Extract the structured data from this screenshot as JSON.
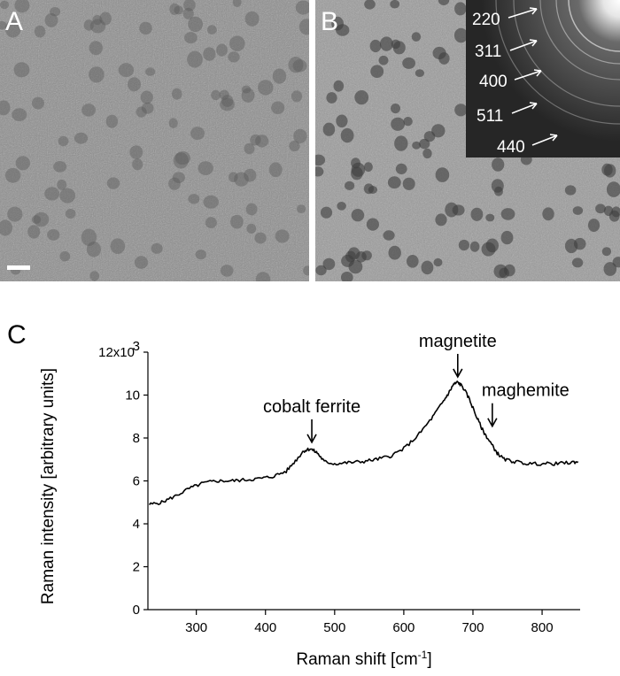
{
  "panels": {
    "a": {
      "label": "A"
    },
    "b": {
      "label": "B"
    },
    "c": {
      "label": "C"
    }
  },
  "saed_rings": [
    "220",
    "311",
    "400",
    "511",
    "440"
  ],
  "colors": {
    "tem_a": "#8c8c8c",
    "tem_b": "#9a9a9a",
    "saed_bg": "#2b2b2b",
    "line": "#000000"
  },
  "chart_data": {
    "type": "line",
    "xlabel": "Raman shift [cm",
    "xlabel_sup": "-1",
    "xlabel_end": "]",
    "ylabel": "Raman intensity [arbitrary units]",
    "xlim": [
      230,
      855
    ],
    "ylim": [
      0,
      12000
    ],
    "x_ticks": [
      300,
      400,
      500,
      600,
      700,
      800
    ],
    "y_ticks": [
      0,
      2000,
      4000,
      6000,
      8000,
      10000,
      12000
    ],
    "y_tick_labels": [
      "0",
      "2",
      "4",
      "6",
      "8",
      "10",
      "12x10"
    ],
    "y_tick_top_sup": "3",
    "series": [
      {
        "x": [
          232,
          250,
          270,
          290,
          310,
          330,
          350,
          370,
          390,
          410,
          430,
          445,
          455,
          465,
          475,
          485,
          500,
          520,
          540,
          560,
          580,
          600,
          620,
          640,
          655,
          665,
          672,
          678,
          685,
          695,
          705,
          715,
          725,
          735,
          745,
          760,
          780,
          800,
          820,
          840,
          852
        ],
        "y": [
          4900,
          5000,
          5300,
          5650,
          5900,
          6000,
          6000,
          6050,
          6100,
          6200,
          6450,
          7000,
          7400,
          7500,
          7300,
          6900,
          6800,
          6850,
          6900,
          7000,
          7150,
          7500,
          8100,
          8900,
          9600,
          10100,
          10500,
          10600,
          10400,
          9800,
          9000,
          8300,
          7800,
          7300,
          7000,
          6900,
          6800,
          6800,
          6800,
          6850,
          6900
        ]
      }
    ],
    "annotations": [
      {
        "text": "cobalt ferrite",
        "x": 467,
        "y": 7550
      },
      {
        "text": "magnetite",
        "x": 678,
        "y": 10600
      },
      {
        "text": "maghemite",
        "x": 728,
        "y": 8300
      }
    ]
  }
}
